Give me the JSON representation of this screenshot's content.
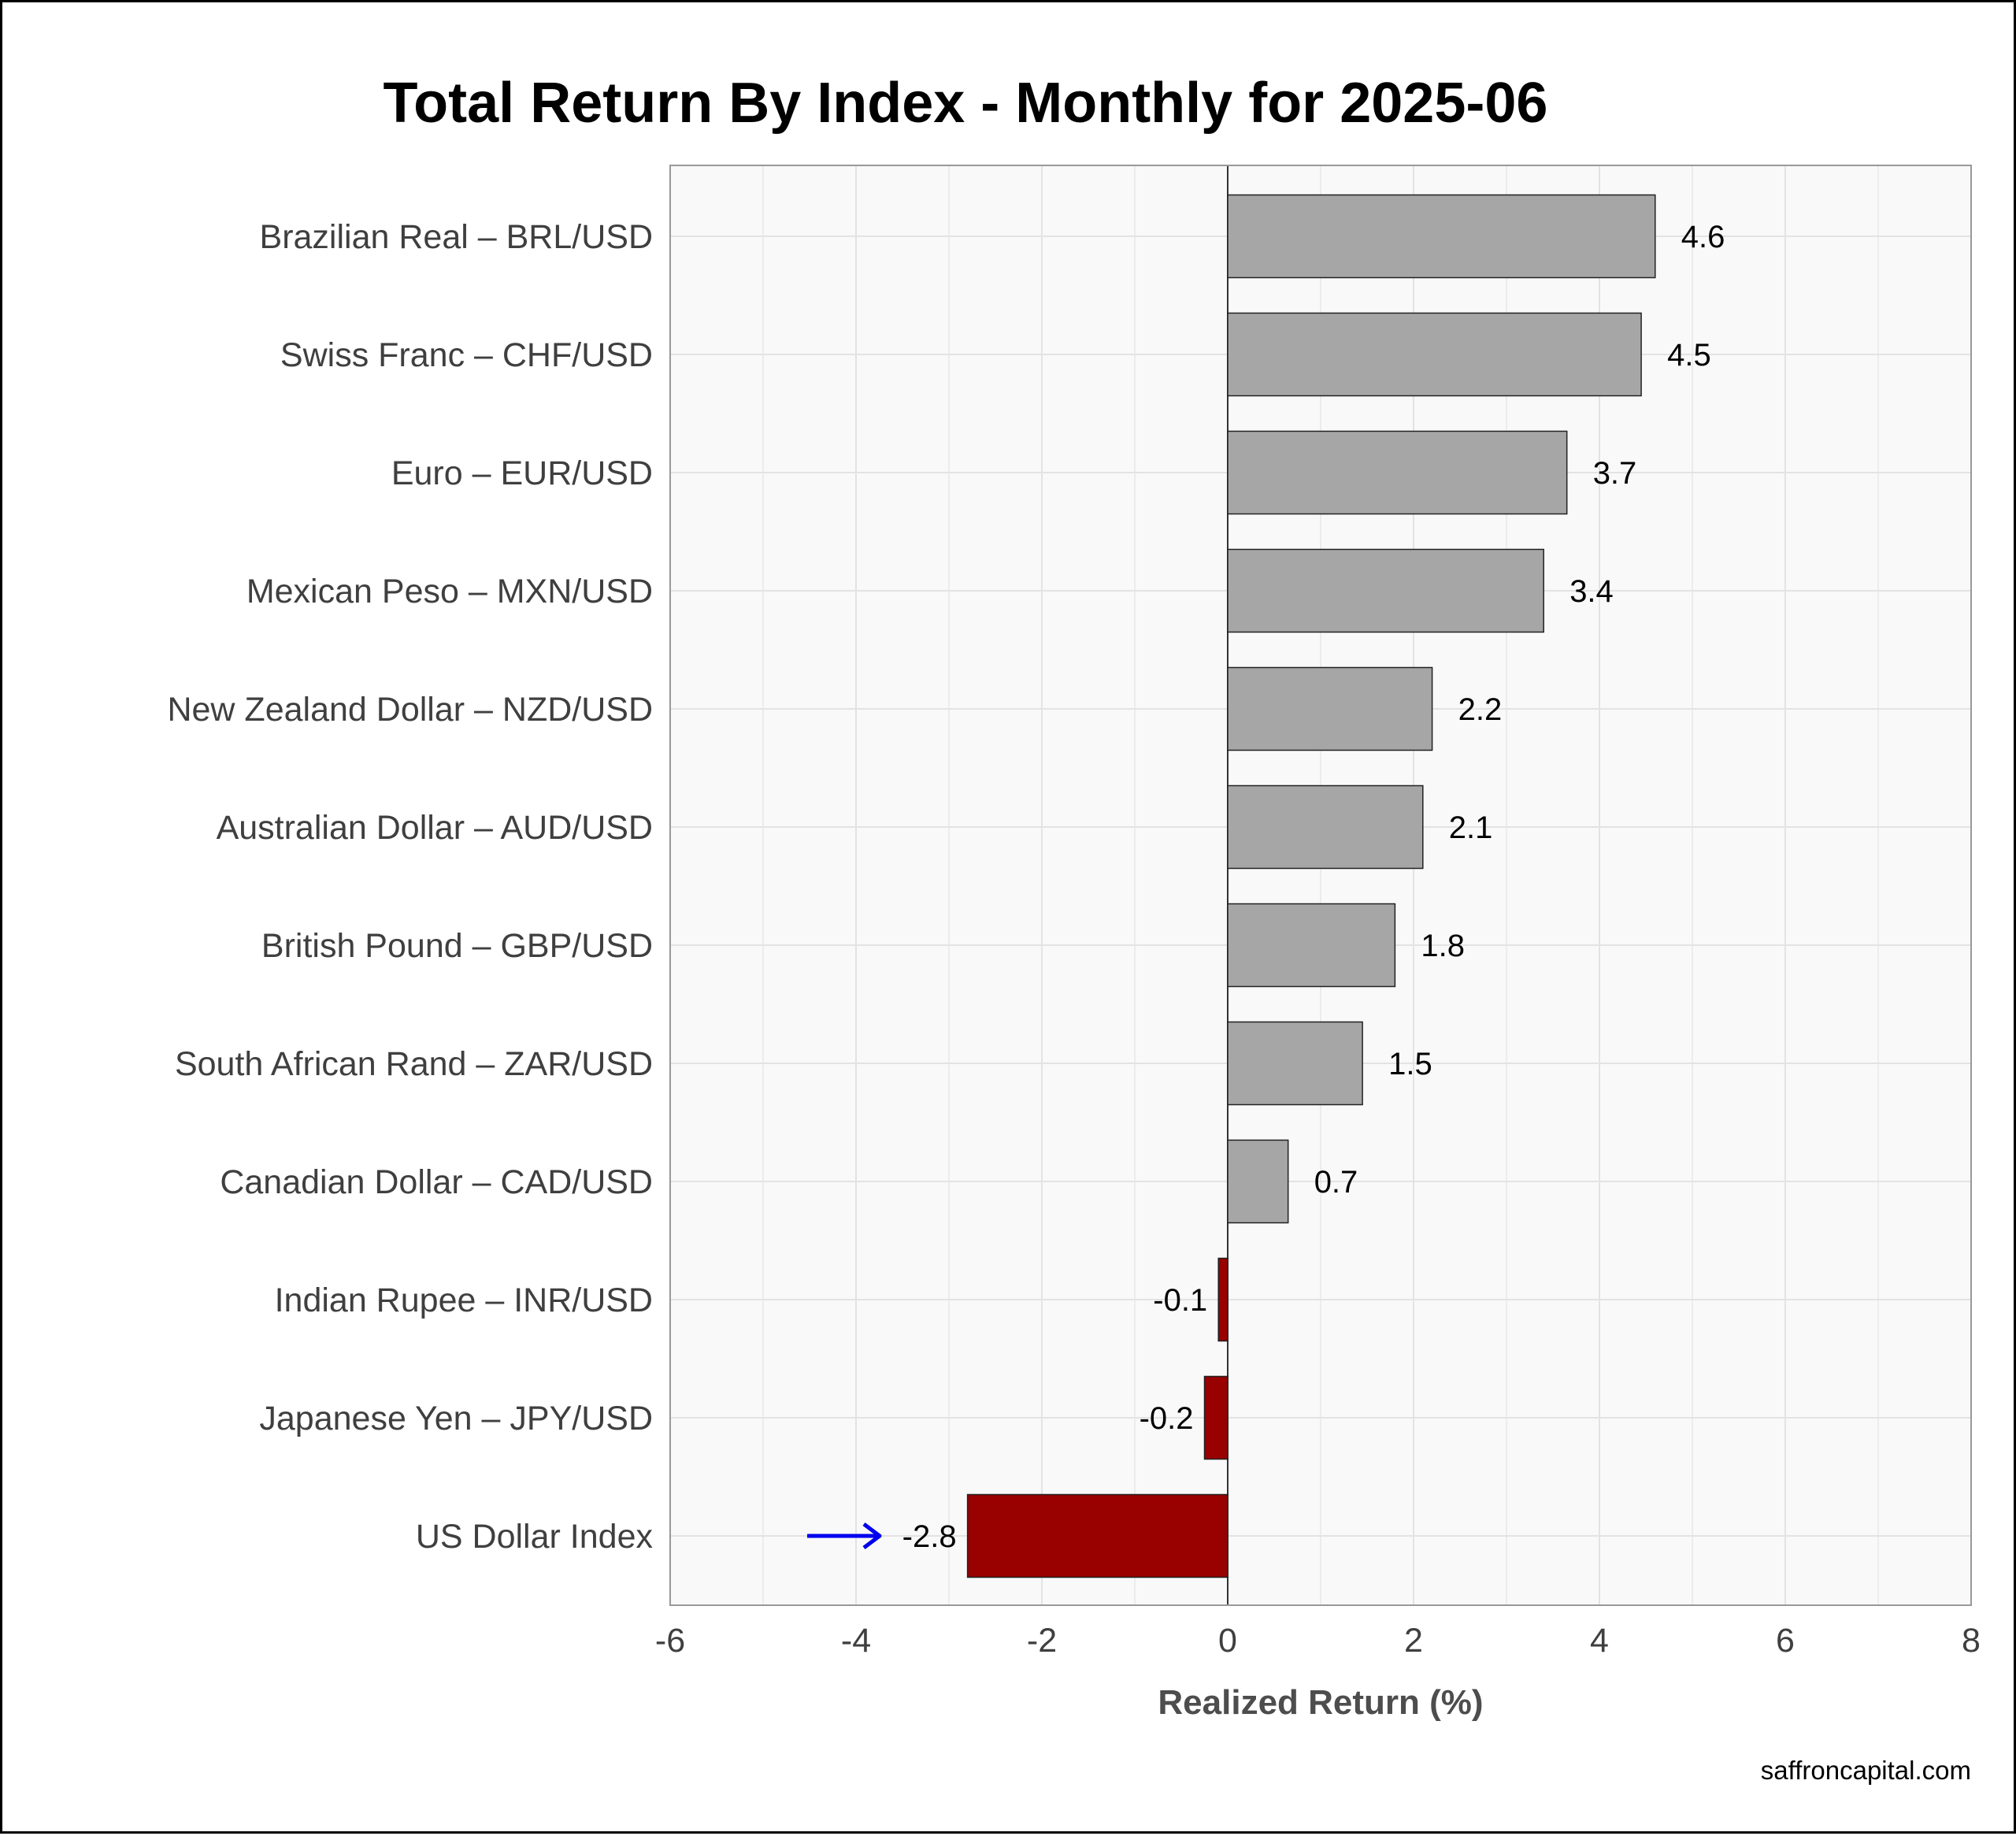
{
  "chart_data": {
    "type": "bar",
    "orientation": "horizontal",
    "title": "Total Return By Index - Monthly for 2025-06",
    "xlabel": "Realized Return (%)",
    "ylabel": "",
    "xlim": [
      -6,
      8
    ],
    "x_ticks": [
      -6,
      -4,
      -2,
      0,
      2,
      4,
      6,
      8
    ],
    "grid": true,
    "categories": [
      "Brazilian Real – BRL/USD",
      "Swiss Franc – CHF/USD",
      "Euro – EUR/USD",
      "Mexican Peso – MXN/USD",
      "New Zealand Dollar – NZD/USD",
      "Australian Dollar – AUD/USD",
      "British Pound – GBP/USD",
      "South African Rand – ZAR/USD",
      "Canadian Dollar – CAD/USD",
      "Indian Rupee – INR/USD",
      "Japanese Yen – JPY/USD",
      "US Dollar Index"
    ],
    "values": [
      4.6,
      4.45,
      3.65,
      3.4,
      2.2,
      2.1,
      1.8,
      1.45,
      0.65,
      -0.1,
      -0.25,
      -2.8
    ],
    "value_labels": [
      "4.6",
      "4.5",
      "3.7",
      "3.4",
      "2.2",
      "2.1",
      "1.8",
      "1.5",
      "0.7",
      "-0.1",
      "-0.2",
      "-2.8"
    ],
    "highlight_category": "US Dollar Index",
    "colors": {
      "positive_bar": "#a6a6a6",
      "negative_bar": "#990000",
      "highlight_label": "#0000ee",
      "arrow": "#0000ee",
      "panel_background": "#f9f9f9",
      "grid": "#e3e3e3"
    },
    "credit": "saffroncapital.com"
  }
}
